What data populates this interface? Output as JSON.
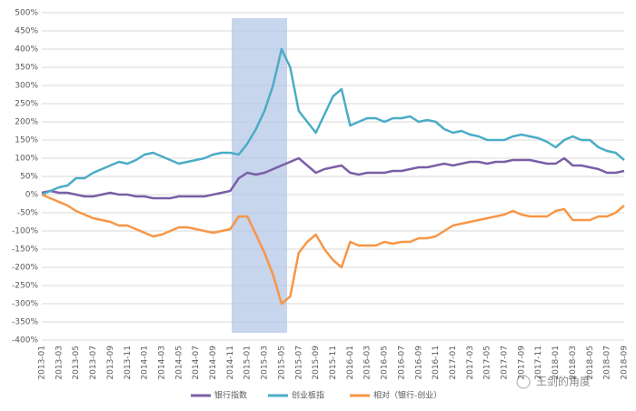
{
  "chart_data": {
    "type": "line",
    "categories": [
      "2013-01",
      null,
      "2013-03",
      null,
      "2013-05",
      null,
      "2013-07",
      null,
      "2013-09",
      null,
      "2013-11",
      null,
      "2014-01",
      null,
      "2014-03",
      null,
      "2014-05",
      null,
      "2014-07",
      null,
      "2014-09",
      null,
      "2014-11",
      null,
      "2015-01",
      null,
      "2015-03",
      null,
      "2015-05",
      null,
      "2015-07",
      null,
      "2015-09",
      null,
      "2015-11",
      null,
      "2016-01",
      null,
      "2016-03",
      null,
      "2016-05",
      null,
      "2016-07",
      null,
      "2016-09",
      null,
      "2016-11",
      null,
      "2017-01",
      null,
      "2017-03",
      null,
      "2017-05",
      null,
      "2017-07",
      null,
      "2017-09",
      null,
      "2017-11",
      null,
      "2018-01",
      null,
      "2018-03",
      null,
      "2018-05",
      null,
      "2018-07",
      null,
      "2018-09"
    ],
    "series": [
      {
        "name": "银行指数",
        "color": "#7b5ea7",
        "values": [
          5,
          10,
          5,
          5,
          0,
          -5,
          -5,
          0,
          5,
          0,
          0,
          -5,
          -5,
          -10,
          -10,
          -10,
          -5,
          -5,
          -5,
          -5,
          0,
          5,
          10,
          45,
          60,
          55,
          60,
          70,
          80,
          90,
          100,
          80,
          60,
          70,
          75,
          80,
          60,
          55,
          60,
          60,
          60,
          65,
          65,
          70,
          75,
          75,
          80,
          85,
          80,
          85,
          90,
          90,
          85,
          90,
          90,
          95,
          95,
          95,
          90,
          85,
          85,
          100,
          80,
          80,
          75,
          70,
          60,
          60,
          65
        ]
      },
      {
        "name": "创业板指",
        "color": "#4bacc6",
        "values": [
          0,
          10,
          20,
          25,
          45,
          45,
          60,
          70,
          80,
          90,
          85,
          95,
          110,
          115,
          105,
          95,
          85,
          90,
          95,
          100,
          110,
          115,
          115,
          110,
          140,
          180,
          230,
          300,
          400,
          350,
          230,
          200,
          170,
          220,
          270,
          290,
          190,
          200,
          210,
          210,
          200,
          210,
          210,
          215,
          200,
          205,
          200,
          180,
          170,
          175,
          165,
          160,
          150,
          150,
          150,
          160,
          165,
          160,
          155,
          145,
          130,
          150,
          160,
          150,
          150,
          130,
          120,
          115,
          95
        ]
      },
      {
        "name": "相对（银行-创业）",
        "color": "#f79646",
        "values": [
          0,
          -10,
          -20,
          -30,
          -45,
          -55,
          -65,
          -70,
          -75,
          -85,
          -85,
          -95,
          -105,
          -115,
          -110,
          -100,
          -90,
          -90,
          -95,
          -100,
          -105,
          -100,
          -95,
          -60,
          -60,
          -110,
          -160,
          -220,
          -300,
          -280,
          -160,
          -130,
          -110,
          -150,
          -180,
          -200,
          -130,
          -140,
          -140,
          -140,
          -130,
          -135,
          -130,
          -130,
          -120,
          -120,
          -115,
          -100,
          -85,
          -80,
          -75,
          -70,
          -65,
          -60,
          -55,
          -45,
          -55,
          -60,
          -60,
          -60,
          -45,
          -40,
          -70,
          -70,
          -70,
          -60,
          -60,
          -50,
          -30
        ]
      }
    ],
    "ylim": [
      -400,
      500
    ],
    "yticks": [
      {
        "value": -400,
        "label": "-400%"
      },
      {
        "value": -350,
        "label": "-350%"
      },
      {
        "value": -300,
        "label": "-300%"
      },
      {
        "value": -250,
        "label": "-250%"
      },
      {
        "value": -200,
        "label": "-200%"
      },
      {
        "value": -150,
        "label": "-150%"
      },
      {
        "value": -100,
        "label": "-100%"
      },
      {
        "value": -50,
        "label": "-50%"
      },
      {
        "value": 0,
        "label": "0%"
      },
      {
        "value": 50,
        "label": "50%"
      },
      {
        "value": 100,
        "label": "100%"
      },
      {
        "value": 150,
        "label": "150%"
      },
      {
        "value": 200,
        "label": "200%"
      },
      {
        "value": 250,
        "label": "250%"
      },
      {
        "value": 300,
        "label": "300%"
      },
      {
        "value": 350,
        "label": "350%"
      },
      {
        "value": 400,
        "label": "400%"
      },
      {
        "value": 450,
        "label": "450%"
      },
      {
        "value": 500,
        "label": "500%"
      }
    ],
    "grid": true,
    "legend": "bottom",
    "watermark": "王剑的角度"
  }
}
